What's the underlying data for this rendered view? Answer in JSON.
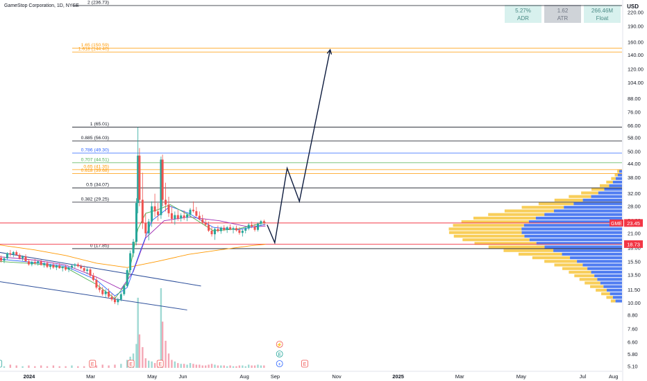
{
  "header": {
    "title": "GameStop Corporation, 1D, NYSE",
    "currency": "USD",
    "stats": [
      {
        "value": "5.27%",
        "label": "ADR"
      },
      {
        "value": "1.62",
        "label": "ATR"
      },
      {
        "value": "266.46M",
        "label": "Float"
      }
    ]
  },
  "colors": {
    "up": "#26a69a",
    "down": "#ef5350",
    "resistance": "#f23645",
    "fib_orange": "#ff9800",
    "fib_blue": "#2962ff",
    "fib_green": "#4caf50",
    "fib_dark": "#131722",
    "vp_up": "#f7c948",
    "vp_down": "#3d6ff0"
  },
  "chart_data": {
    "type": "candlestick",
    "symbol": "GME",
    "scale": "log",
    "ylim": [
      5.0,
      260.0
    ],
    "y_ticks": [
      5.1,
      5.8,
      6.6,
      7.6,
      8.8,
      10.0,
      11.5,
      13.5,
      15.5,
      18.0,
      21.0,
      24.0,
      28.0,
      32.0,
      38.0,
      44.0,
      50.0,
      58.0,
      66.0,
      76.0,
      88.0,
      104.0,
      120.0,
      140.0,
      160.0,
      190.0,
      220.0
    ],
    "x_ticks": [
      {
        "label": "2024",
        "t": 0
      },
      {
        "label": "Mar",
        "t": 2
      },
      {
        "label": "May",
        "t": 4
      },
      {
        "label": "Jun",
        "t": 5
      },
      {
        "label": "Aug",
        "t": 7
      },
      {
        "label": "Sep",
        "t": 8
      },
      {
        "label": "Nov",
        "t": 10
      },
      {
        "label": "2025",
        "t": 12
      },
      {
        "label": "Mar",
        "t": 14
      },
      {
        "label": "May",
        "t": 16
      },
      {
        "label": "Jul",
        "t": 18
      },
      {
        "label": "Aug",
        "t": 19
      }
    ],
    "fib_levels": [
      {
        "ratio": "2",
        "price": 236.73,
        "label": "2 (236.73)",
        "color": "#131722"
      },
      {
        "ratio": "1.65",
        "price": 150.59,
        "label": "1.65 (150.59)",
        "color": "#ff9800"
      },
      {
        "ratio": "1.618",
        "price": 144.4,
        "label": "1.618 (144.40)",
        "color": "#ff9800"
      },
      {
        "ratio": "1",
        "price": 65.01,
        "label": "1 (65.01)",
        "color": "#131722"
      },
      {
        "ratio": "0.885",
        "price": 56.03,
        "label": "0.885 (56.03)",
        "color": "#131722"
      },
      {
        "ratio": "0.786",
        "price": 49.3,
        "label": "0.786 (49.30)",
        "color": "#2962ff"
      },
      {
        "ratio": "0.707",
        "price": 44.51,
        "label": "0.707 (44.51)",
        "color": "#4caf50"
      },
      {
        "ratio": "0.65",
        "price": 41.35,
        "label": "0.65 (41.35)",
        "color": "#ff9800"
      },
      {
        "ratio": "0.618",
        "price": 39.68,
        "label": "0.618 (39.68)",
        "color": "#ff9800"
      },
      {
        "ratio": "0.5",
        "price": 34.07,
        "label": "0.5 (34.07)",
        "color": "#131722"
      },
      {
        "ratio": "0.382",
        "price": 29.25,
        "label": "0.382 (29.25)",
        "color": "#131722"
      },
      {
        "ratio": "0",
        "price": 17.85,
        "label": "0 (17.85)",
        "color": "#131722"
      }
    ],
    "price_labels": [
      {
        "text": "GME",
        "value": "23.45",
        "price": 23.45,
        "color": "#f23645"
      },
      {
        "text": "",
        "value": "18.73",
        "price": 18.73,
        "color": "#f23645"
      }
    ],
    "horizontal_lines": [
      {
        "price": 23.45,
        "color": "#f23645"
      },
      {
        "price": 18.73,
        "color": "#f23645"
      }
    ],
    "projection_path": [
      {
        "t": 8.55,
        "price": 23.0
      },
      {
        "t": 8.8,
        "price": 19.0
      },
      {
        "t": 9.2,
        "price": 42.0
      },
      {
        "t": 9.6,
        "price": 29.5
      },
      {
        "t": 10.6,
        "price": 148.0
      }
    ],
    "trendlines": [
      {
        "t1": -0.2,
        "p1": 17.2,
        "t2": 6.4,
        "p2": 12.0
      },
      {
        "t1": -0.2,
        "p1": 12.6,
        "t2": 5.95,
        "p2": 9.3
      }
    ],
    "candles": [
      [
        -0.2,
        15.8,
        16.5,
        15.2,
        16.2
      ],
      [
        -0.1,
        16.2,
        16.6,
        15.4,
        15.7
      ],
      [
        0.0,
        15.7,
        16.4,
        15.3,
        16.1
      ],
      [
        0.1,
        16.1,
        17.2,
        15.9,
        17.0
      ],
      [
        0.2,
        17.0,
        17.6,
        16.4,
        16.8
      ],
      [
        0.3,
        16.8,
        17.4,
        16.3,
        17.2
      ],
      [
        0.4,
        17.2,
        17.5,
        16.6,
        16.7
      ],
      [
        0.5,
        16.7,
        17.0,
        15.9,
        16.1
      ],
      [
        0.6,
        16.1,
        16.6,
        15.7,
        16.4
      ],
      [
        0.7,
        16.4,
        16.8,
        15.5,
        15.6
      ],
      [
        0.8,
        15.6,
        16.0,
        14.9,
        15.1
      ],
      [
        0.9,
        15.1,
        15.7,
        14.8,
        15.5
      ],
      [
        1.0,
        15.5,
        16.0,
        15.0,
        15.3
      ],
      [
        1.1,
        15.3,
        15.8,
        14.9,
        15.6
      ],
      [
        1.2,
        15.6,
        15.9,
        14.9,
        15.0
      ],
      [
        1.3,
        15.0,
        15.5,
        14.6,
        15.3
      ],
      [
        1.4,
        15.3,
        15.6,
        14.5,
        14.7
      ],
      [
        1.5,
        14.7,
        15.2,
        14.3,
        15.0
      ],
      [
        1.6,
        15.0,
        15.4,
        14.4,
        14.6
      ],
      [
        1.7,
        14.6,
        15.1,
        14.2,
        14.9
      ],
      [
        1.8,
        14.9,
        15.3,
        14.4,
        14.5
      ],
      [
        1.9,
        14.5,
        14.9,
        14.0,
        14.7
      ],
      [
        2.0,
        14.7,
        15.0,
        14.1,
        14.3
      ],
      [
        2.1,
        14.3,
        14.8,
        13.9,
        14.6
      ],
      [
        2.2,
        14.6,
        15.0,
        14.2,
        14.9
      ],
      [
        2.3,
        14.9,
        15.3,
        14.5,
        15.1
      ],
      [
        2.4,
        15.1,
        15.4,
        14.6,
        14.8
      ],
      [
        2.5,
        14.8,
        15.1,
        14.3,
        14.5
      ],
      [
        2.6,
        14.5,
        14.9,
        13.9,
        14.1
      ],
      [
        2.7,
        14.1,
        14.6,
        13.6,
        14.3
      ],
      [
        2.8,
        14.3,
        14.5,
        13.2,
        13.4
      ],
      [
        2.9,
        13.4,
        13.8,
        12.6,
        12.8
      ],
      [
        3.0,
        12.8,
        13.2,
        11.6,
        11.8
      ],
      [
        3.1,
        11.8,
        12.3,
        11.2,
        11.5
      ],
      [
        3.2,
        11.5,
        11.9,
        10.8,
        11.0
      ],
      [
        3.3,
        11.0,
        11.6,
        10.6,
        11.3
      ],
      [
        3.4,
        11.3,
        11.7,
        10.5,
        10.7
      ],
      [
        3.5,
        10.7,
        11.1,
        10.2,
        10.4
      ],
      [
        3.6,
        10.4,
        10.8,
        9.9,
        10.1
      ],
      [
        3.7,
        10.1,
        10.6,
        9.8,
        10.4
      ],
      [
        3.8,
        10.4,
        11.2,
        10.2,
        11.0
      ],
      [
        3.9,
        11.0,
        12.2,
        10.8,
        12.0
      ],
      [
        4.0,
        12.0,
        14.5,
        11.8,
        14.2
      ],
      [
        4.1,
        14.2,
        17.5,
        13.8,
        17.0
      ],
      [
        4.2,
        17.0,
        19.8,
        16.3,
        19.2
      ],
      [
        4.3,
        19.2,
        30.5,
        18.5,
        29.0
      ],
      [
        4.35,
        29.0,
        65.0,
        26.0,
        48.0
      ],
      [
        4.4,
        48.0,
        52.0,
        28.0,
        30.0
      ],
      [
        4.5,
        30.0,
        40.0,
        22.0,
        23.5
      ],
      [
        4.6,
        23.5,
        26.0,
        20.2,
        21.0
      ],
      [
        4.7,
        21.0,
        24.5,
        19.5,
        23.8
      ],
      [
        4.8,
        23.8,
        29.5,
        22.5,
        28.0
      ],
      [
        4.9,
        28.0,
        32.0,
        25.0,
        26.5
      ],
      [
        5.0,
        26.5,
        29.0,
        24.0,
        25.5
      ],
      [
        5.1,
        25.5,
        47.5,
        24.5,
        46.0
      ],
      [
        5.15,
        46.0,
        48.5,
        28.0,
        30.0
      ],
      [
        5.25,
        30.0,
        36.0,
        26.5,
        28.5
      ],
      [
        5.35,
        28.5,
        31.0,
        25.0,
        26.0
      ],
      [
        5.45,
        26.0,
        28.0,
        23.5,
        24.5
      ],
      [
        5.55,
        24.5,
        26.5,
        23.0,
        25.5
      ],
      [
        5.65,
        25.5,
        27.0,
        24.0,
        24.6
      ],
      [
        5.75,
        24.6,
        26.0,
        23.8,
        25.4
      ],
      [
        5.85,
        25.4,
        26.8,
        24.2,
        24.8
      ],
      [
        5.95,
        24.8,
        26.2,
        23.9,
        25.6
      ],
      [
        6.05,
        25.6,
        27.5,
        24.9,
        27.0
      ],
      [
        6.15,
        27.0,
        29.5,
        26.2,
        26.6
      ],
      [
        6.25,
        26.6,
        27.8,
        25.0,
        25.3
      ],
      [
        6.35,
        25.3,
        26.5,
        24.1,
        24.4
      ],
      [
        6.45,
        24.4,
        25.6,
        23.2,
        23.6
      ],
      [
        6.55,
        23.6,
        24.5,
        22.6,
        23.0
      ],
      [
        6.65,
        23.0,
        23.8,
        21.3,
        21.6
      ],
      [
        6.75,
        21.6,
        22.5,
        20.3,
        20.8
      ],
      [
        6.85,
        20.8,
        22.3,
        19.6,
        22.0
      ],
      [
        6.95,
        22.0,
        22.8,
        21.2,
        21.5
      ],
      [
        7.05,
        21.5,
        22.6,
        20.9,
        22.3
      ],
      [
        7.15,
        22.3,
        22.9,
        21.5,
        21.8
      ],
      [
        7.25,
        21.8,
        22.7,
        21.1,
        22.4
      ],
      [
        7.35,
        22.4,
        23.1,
        21.7,
        21.9
      ],
      [
        7.45,
        21.9,
        22.6,
        21.0,
        22.2
      ],
      [
        7.55,
        22.2,
        22.8,
        21.4,
        21.7
      ],
      [
        7.65,
        21.7,
        22.4,
        20.7,
        21.1
      ],
      [
        7.75,
        21.1,
        21.9,
        20.3,
        21.6
      ],
      [
        7.85,
        21.6,
        22.5,
        21.0,
        22.1
      ],
      [
        7.95,
        22.1,
        23.4,
        21.7,
        23.0
      ],
      [
        8.05,
        23.0,
        23.8,
        22.2,
        22.6
      ],
      [
        8.15,
        22.6,
        23.2,
        21.4,
        21.8
      ],
      [
        8.25,
        21.8,
        23.6,
        21.4,
        23.3
      ],
      [
        8.35,
        23.3,
        24.2,
        22.7,
        23.9
      ],
      [
        8.45,
        23.9,
        24.3,
        22.8,
        23.45
      ]
    ],
    "volumes": [
      [
        -0.2,
        3
      ],
      [
        0.0,
        2
      ],
      [
        0.2,
        4
      ],
      [
        0.4,
        3
      ],
      [
        0.6,
        2
      ],
      [
        0.8,
        3
      ],
      [
        1.0,
        2
      ],
      [
        1.2,
        3
      ],
      [
        1.4,
        2
      ],
      [
        1.6,
        3
      ],
      [
        1.8,
        2
      ],
      [
        2.0,
        2
      ],
      [
        2.2,
        3
      ],
      [
        2.4,
        2
      ],
      [
        2.6,
        2
      ],
      [
        2.8,
        3
      ],
      [
        3.0,
        3
      ],
      [
        3.2,
        4
      ],
      [
        3.4,
        3
      ],
      [
        3.6,
        4
      ],
      [
        3.8,
        5
      ],
      [
        4.0,
        10
      ],
      [
        4.1,
        14
      ],
      [
        4.2,
        18
      ],
      [
        4.3,
        30
      ],
      [
        4.35,
        88
      ],
      [
        4.4,
        42
      ],
      [
        4.5,
        26
      ],
      [
        4.6,
        12
      ],
      [
        4.7,
        9
      ],
      [
        4.8,
        8
      ],
      [
        4.9,
        6
      ],
      [
        5.0,
        7
      ],
      [
        5.1,
        100
      ],
      [
        5.15,
        58
      ],
      [
        5.25,
        34
      ],
      [
        5.35,
        18
      ],
      [
        5.45,
        10
      ],
      [
        5.55,
        8
      ],
      [
        5.65,
        6
      ],
      [
        5.75,
        5
      ],
      [
        5.85,
        5
      ],
      [
        5.95,
        4
      ],
      [
        6.05,
        6
      ],
      [
        6.15,
        5
      ],
      [
        6.25,
        4
      ],
      [
        6.35,
        4
      ],
      [
        6.45,
        3
      ],
      [
        6.55,
        3
      ],
      [
        6.65,
        4
      ],
      [
        6.75,
        5
      ],
      [
        6.85,
        4
      ],
      [
        6.95,
        3
      ],
      [
        7.05,
        3
      ],
      [
        7.15,
        3
      ],
      [
        7.25,
        2
      ],
      [
        7.35,
        3
      ],
      [
        7.45,
        2
      ],
      [
        7.55,
        2
      ],
      [
        7.65,
        3
      ],
      [
        7.75,
        3
      ],
      [
        7.85,
        2
      ],
      [
        7.95,
        4
      ],
      [
        8.05,
        3
      ],
      [
        8.15,
        3
      ],
      [
        8.25,
        4
      ],
      [
        8.35,
        3
      ],
      [
        8.45,
        3
      ]
    ],
    "event_markers": [
      {
        "t": -0.2,
        "label": "E",
        "color": "#26a69a"
      },
      {
        "t": 2.85,
        "label": "E",
        "color": "#ef5350"
      },
      {
        "t": 4.1,
        "label": "E",
        "color": "#ef5350"
      },
      {
        "t": 5.05,
        "label": "E",
        "color": "#ef5350"
      },
      {
        "t": 9.75,
        "label": "E",
        "color": "#ef5350"
      }
    ],
    "stacked_markers": [
      {
        "label": "⚡",
        "color": "#ef5350"
      },
      {
        "label": "E",
        "color": "#26a69a"
      },
      {
        "label": "+",
        "color": "#2962ff"
      }
    ],
    "stacked_marker_t": 7.6,
    "moving_averages": [
      {
        "name": "",
        "color": "#ff9800",
        "points": [
          [
            -0.2,
            18.6
          ],
          [
            1.0,
            17.6
          ],
          [
            2.0,
            16.6
          ],
          [
            3.0,
            15.3
          ],
          [
            4.0,
            14.6
          ],
          [
            5.0,
            15.6
          ],
          [
            6.0,
            16.8
          ],
          [
            7.0,
            17.6
          ],
          [
            8.0,
            18.4
          ],
          [
            8.5,
            18.7
          ]
        ]
      },
      {
        "name": "",
        "color": "#9c27b0",
        "points": [
          [
            -0.2,
            16.4
          ],
          [
            1.0,
            15.8
          ],
          [
            2.0,
            15.0
          ],
          [
            3.0,
            13.2
          ],
          [
            3.8,
            11.6
          ],
          [
            4.2,
            14.0
          ],
          [
            4.6,
            20.0
          ],
          [
            5.2,
            24.0
          ],
          [
            6.0,
            25.0
          ],
          [
            7.0,
            24.0
          ],
          [
            8.0,
            22.4
          ],
          [
            8.5,
            22.7
          ]
        ]
      },
      {
        "name": "",
        "color": "#2962ff",
        "points": [
          [
            -0.2,
            16.0
          ],
          [
            1.0,
            15.4
          ],
          [
            2.0,
            14.8
          ],
          [
            3.0,
            12.8
          ],
          [
            3.6,
            10.8
          ],
          [
            4.0,
            11.8
          ],
          [
            4.4,
            17.0
          ],
          [
            4.8,
            24.0
          ],
          [
            5.4,
            28.0
          ],
          [
            6.0,
            26.0
          ],
          [
            6.8,
            22.4
          ],
          [
            7.6,
            21.8
          ],
          [
            8.5,
            23.1
          ]
        ]
      },
      {
        "name": "",
        "color": "#4caf50",
        "points": [
          [
            -0.2,
            15.6
          ],
          [
            1.0,
            15.2
          ],
          [
            2.0,
            14.6
          ],
          [
            3.0,
            12.2
          ],
          [
            3.6,
            10.5
          ],
          [
            4.0,
            12.5
          ],
          [
            4.35,
            22.0
          ],
          [
            4.6,
            26.0
          ],
          [
            5.0,
            27.0
          ],
          [
            5.4,
            28.5
          ],
          [
            6.0,
            25.5
          ],
          [
            6.8,
            21.6
          ],
          [
            7.6,
            22.0
          ],
          [
            8.5,
            23.6
          ]
        ]
      }
    ]
  }
}
